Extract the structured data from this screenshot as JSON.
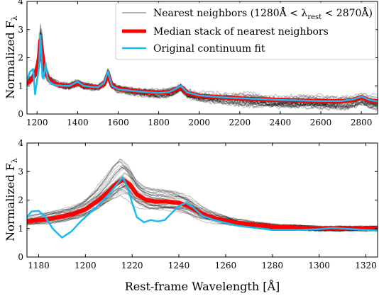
{
  "chart_data": [
    {
      "type": "line",
      "ylabel": "Normalized F",
      "ylabel_sub": "λ",
      "xlim": [
        1150,
        2880
      ],
      "ylim": [
        0,
        4
      ],
      "xticks": [
        1200,
        1400,
        1600,
        1800,
        2000,
        2200,
        2400,
        2600,
        2800
      ],
      "yticks": [
        0,
        1,
        2,
        3,
        4
      ],
      "legend": {
        "placement": "top-right",
        "entries": [
          {
            "label": "Nearest neighbors (1280Å < λ",
            "sub": "rest",
            "label_end": " < 2870Å)",
            "color": "#b3b3b3"
          },
          {
            "label": "Median stack of nearest neighbors",
            "color": "#ff0000"
          },
          {
            "label": "Original continuum fit",
            "color": "#18bbf0"
          }
        ]
      },
      "series": [
        {
          "name": "Median stack of nearest neighbors",
          "color": "#ff0000",
          "x": [
            1150,
            1170,
            1190,
            1200,
            1210,
            1216,
            1222,
            1230,
            1240,
            1260,
            1280,
            1300,
            1330,
            1360,
            1400,
            1430,
            1460,
            1500,
            1530,
            1549,
            1570,
            1600,
            1650,
            1700,
            1750,
            1800,
            1850,
            1880,
            1909,
            1940,
            2000,
            2100,
            2200,
            2300,
            2400,
            2500,
            2600,
            2700,
            2760,
            2800,
            2840,
            2880
          ],
          "y": [
            1.1,
            1.2,
            1.4,
            1.6,
            2.0,
            2.6,
            2.3,
            1.8,
            1.5,
            1.2,
            1.1,
            1.05,
            1.0,
            1.0,
            1.1,
            1.0,
            0.98,
            0.95,
            1.05,
            1.4,
            1.0,
            0.9,
            0.85,
            0.8,
            0.78,
            0.76,
            0.78,
            0.85,
            0.95,
            0.75,
            0.65,
            0.6,
            0.55,
            0.52,
            0.5,
            0.48,
            0.45,
            0.45,
            0.5,
            0.6,
            0.48,
            0.45
          ]
        },
        {
          "name": "Original continuum fit",
          "color": "#18bbf0",
          "x": [
            1150,
            1165,
            1180,
            1190,
            1200,
            1210,
            1216,
            1222,
            1226,
            1232,
            1242,
            1250,
            1260,
            1280,
            1300,
            1330,
            1360,
            1400,
            1430,
            1460,
            1500,
            1530,
            1549,
            1570,
            1600,
            1650,
            1700,
            1750,
            1800,
            1850,
            1880,
            1909,
            1940,
            2000,
            2100,
            2200,
            2300,
            2400,
            2500,
            2600,
            2700,
            2760,
            2800,
            2840,
            2880
          ],
          "y": [
            1.2,
            1.5,
            1.6,
            0.7,
            1.2,
            1.7,
            2.8,
            2.1,
            1.3,
            1.25,
            1.8,
            1.3,
            1.15,
            1.05,
            1.02,
            1.0,
            1.0,
            1.15,
            1.0,
            0.97,
            0.95,
            1.1,
            1.5,
            1.0,
            0.88,
            0.84,
            0.8,
            0.77,
            0.75,
            0.78,
            0.88,
            1.0,
            0.77,
            0.66,
            0.6,
            0.56,
            0.53,
            0.5,
            0.48,
            0.46,
            0.46,
            0.52,
            0.62,
            0.5,
            0.45
          ]
        }
      ]
    },
    {
      "type": "line",
      "ylabel": "Normalized F",
      "ylabel_sub": "λ",
      "xlabel": "Rest-frame Wavelength [Å]",
      "xlim": [
        1175,
        1325
      ],
      "ylim": [
        0,
        4
      ],
      "xticks": [
        1180,
        1200,
        1220,
        1240,
        1260,
        1280,
        1300,
        1320
      ],
      "yticks": [
        0,
        1,
        2,
        3,
        4
      ],
      "series": [
        {
          "name": "Median stack of nearest neighbors",
          "color": "#ff0000",
          "x": [
            1175,
            1180,
            1185,
            1190,
            1195,
            1200,
            1205,
            1210,
            1213,
            1216,
            1219,
            1222,
            1226,
            1230,
            1235,
            1240,
            1244,
            1248,
            1252,
            1256,
            1260,
            1265,
            1270,
            1280,
            1290,
            1300,
            1310,
            1320,
            1325
          ],
          "y": [
            1.25,
            1.3,
            1.35,
            1.42,
            1.52,
            1.68,
            1.95,
            2.3,
            2.55,
            2.72,
            2.55,
            2.2,
            2.0,
            1.95,
            1.95,
            1.9,
            1.8,
            1.6,
            1.45,
            1.35,
            1.28,
            1.2,
            1.15,
            1.07,
            1.03,
            1.0,
            1.0,
            1.0,
            1.0
          ]
        },
        {
          "name": "Original continuum fit",
          "color": "#18bbf0",
          "x": [
            1175,
            1177,
            1180,
            1183,
            1186,
            1190,
            1194,
            1198,
            1202,
            1206,
            1210,
            1213,
            1216,
            1218,
            1220,
            1222,
            1225,
            1228,
            1231,
            1234,
            1237,
            1240,
            1243,
            1246,
            1250,
            1255,
            1260,
            1265,
            1270,
            1275,
            1280,
            1290,
            1300,
            1305,
            1310,
            1320,
            1325
          ],
          "y": [
            1.4,
            1.6,
            1.62,
            1.4,
            1.0,
            0.68,
            0.9,
            1.25,
            1.55,
            1.85,
            2.2,
            2.5,
            2.8,
            2.45,
            1.9,
            1.4,
            1.22,
            1.3,
            1.25,
            1.3,
            1.55,
            1.8,
            1.9,
            1.75,
            1.45,
            1.3,
            1.2,
            1.1,
            1.05,
            1.0,
            0.95,
            0.95,
            0.98,
            1.02,
            1.0,
            0.95,
            0.93
          ]
        }
      ]
    }
  ]
}
